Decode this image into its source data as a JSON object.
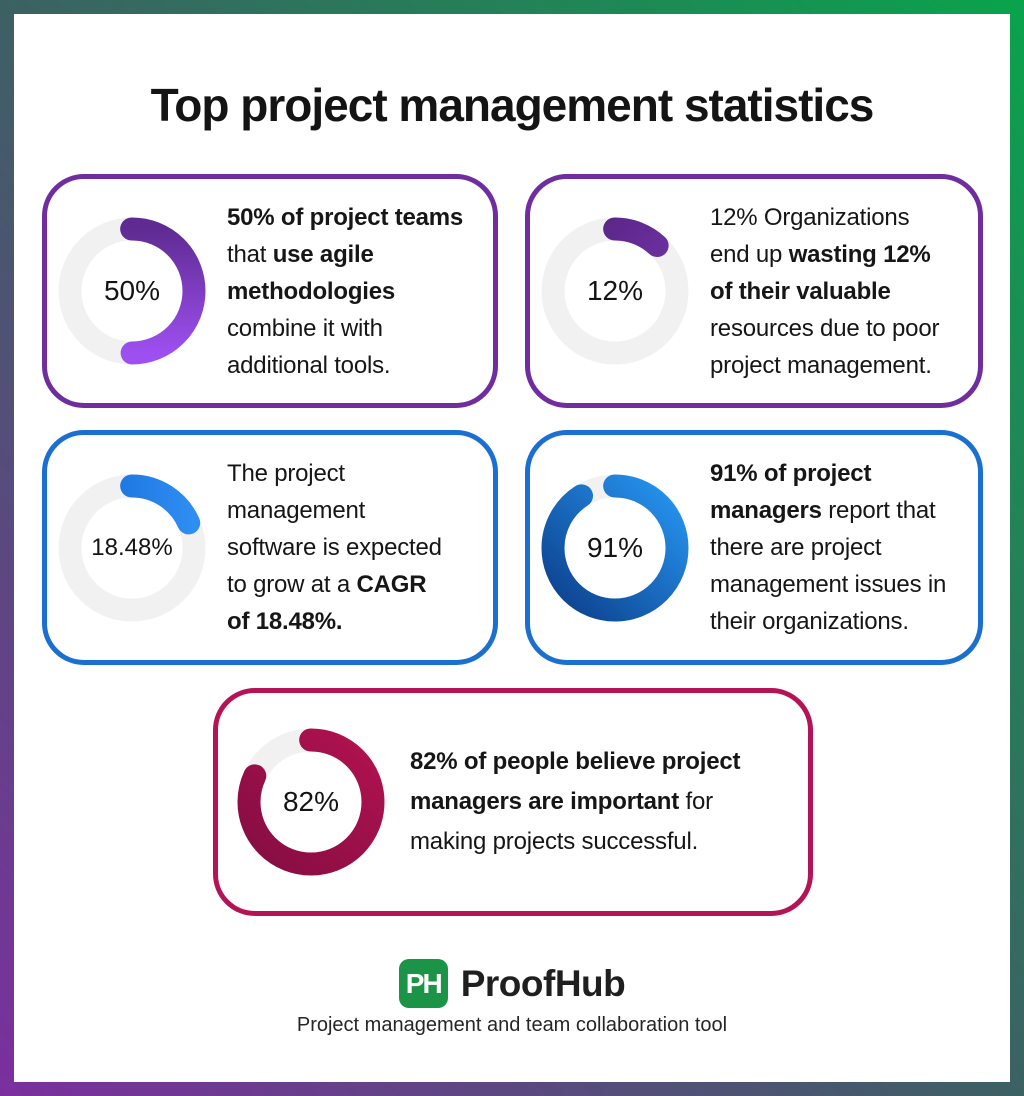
{
  "title": "Top project management statistics",
  "colors": {
    "frame_green": "#0aa34c",
    "frame_teal": "#3c6163",
    "frame_purple": "#7b2f9e",
    "donut_track": "#f1f1f2",
    "brand_green": "#1b9447",
    "text": "#161616"
  },
  "chart_data": {
    "type": "pie",
    "title": "Top project management statistics",
    "charts": [
      {
        "label": "50%",
        "value": 50,
        "max": 100,
        "topic": "project teams using agile combine it with additional tools"
      },
      {
        "label": "12%",
        "value": 12,
        "max": 100,
        "topic": "organizations wasting resources due to poor project management"
      },
      {
        "label": "18.48%",
        "value": 18.48,
        "max": 100,
        "topic": "CAGR of project management software growth"
      },
      {
        "label": "91%",
        "value": 91,
        "max": 100,
        "topic": "project managers reporting project management issues"
      },
      {
        "label": "82%",
        "value": 82,
        "max": 100,
        "topic": "people who believe project managers are important"
      }
    ]
  },
  "cards": [
    {
      "id": "agile-teams",
      "percent_label": "50%",
      "percent_value": 50,
      "accent": "#6f2da0",
      "arc_from": "#5f2b92",
      "arc_to": "#9d4ff0",
      "lines": [
        [
          {
            "t": "50% of project teams",
            "b": true
          }
        ],
        [
          {
            "t": "that ",
            "b": false
          },
          {
            "t": "use agile",
            "b": true
          }
        ],
        [
          {
            "t": "methodologies",
            "b": true
          }
        ],
        [
          {
            "t": "combine it with",
            "b": false
          }
        ],
        [
          {
            "t": "additional tools.",
            "b": false
          }
        ]
      ]
    },
    {
      "id": "wasted-resources",
      "percent_label": "12%",
      "percent_value": 12,
      "accent": "#6f2da0",
      "arc_from": "#54227f",
      "arc_to": "#7e3ab8",
      "lines": [
        [
          {
            "t": "12% Organizations",
            "b": false
          }
        ],
        [
          {
            "t": "end up ",
            "b": false
          },
          {
            "t": "wasting 12%",
            "b": true
          }
        ],
        [
          {
            "t": "of their valuable",
            "b": true
          }
        ],
        [
          {
            "t": "resources due to poor",
            "b": false
          }
        ],
        [
          {
            "t": "project management.",
            "b": false
          }
        ]
      ]
    },
    {
      "id": "software-cagr",
      "percent_label": "18.48%",
      "percent_value": 18.48,
      "accent": "#1b6fd0",
      "arc_from": "#1569d8",
      "arc_to": "#2f8ef2",
      "lines": [
        [
          {
            "t": "The project",
            "b": false
          }
        ],
        [
          {
            "t": "management",
            "b": false
          }
        ],
        [
          {
            "t": "software is expected",
            "b": false
          }
        ],
        [
          {
            "t": "to grow at a ",
            "b": false
          },
          {
            "t": "CAGR",
            "b": true
          }
        ],
        [
          {
            "t": "of 18.48%.",
            "b": true
          }
        ]
      ]
    },
    {
      "id": "pm-issues",
      "percent_label": "91%",
      "percent_value": 91,
      "accent": "#1b6fd0",
      "arc_from": "#2796f2",
      "arc_to": "#0c3f8b",
      "lines": [
        [
          {
            "t": "91% of project",
            "b": true
          }
        ],
        [
          {
            "t": "managers",
            "b": true
          },
          {
            "t": " report that",
            "b": false
          }
        ],
        [
          {
            "t": "there are project",
            "b": false
          }
        ],
        [
          {
            "t": "management issues in",
            "b": false
          }
        ],
        [
          {
            "t": "their organizations.",
            "b": false
          }
        ]
      ]
    },
    {
      "id": "pm-importance",
      "percent_label": "82%",
      "percent_value": 82,
      "accent": "#b41355",
      "arc_from": "#b0124f",
      "arc_to": "#850d42",
      "lines": [
        [
          {
            "t": "82% of people believe project",
            "b": true
          }
        ],
        [
          {
            "t": "managers are important",
            "b": true
          },
          {
            "t": " for",
            "b": false
          }
        ],
        [
          {
            "t": "making projects successful.",
            "b": false
          }
        ]
      ]
    }
  ],
  "footer": {
    "logo_initials": "PH",
    "brand": "ProofHub",
    "tagline": "Project management and team collaboration tool"
  }
}
